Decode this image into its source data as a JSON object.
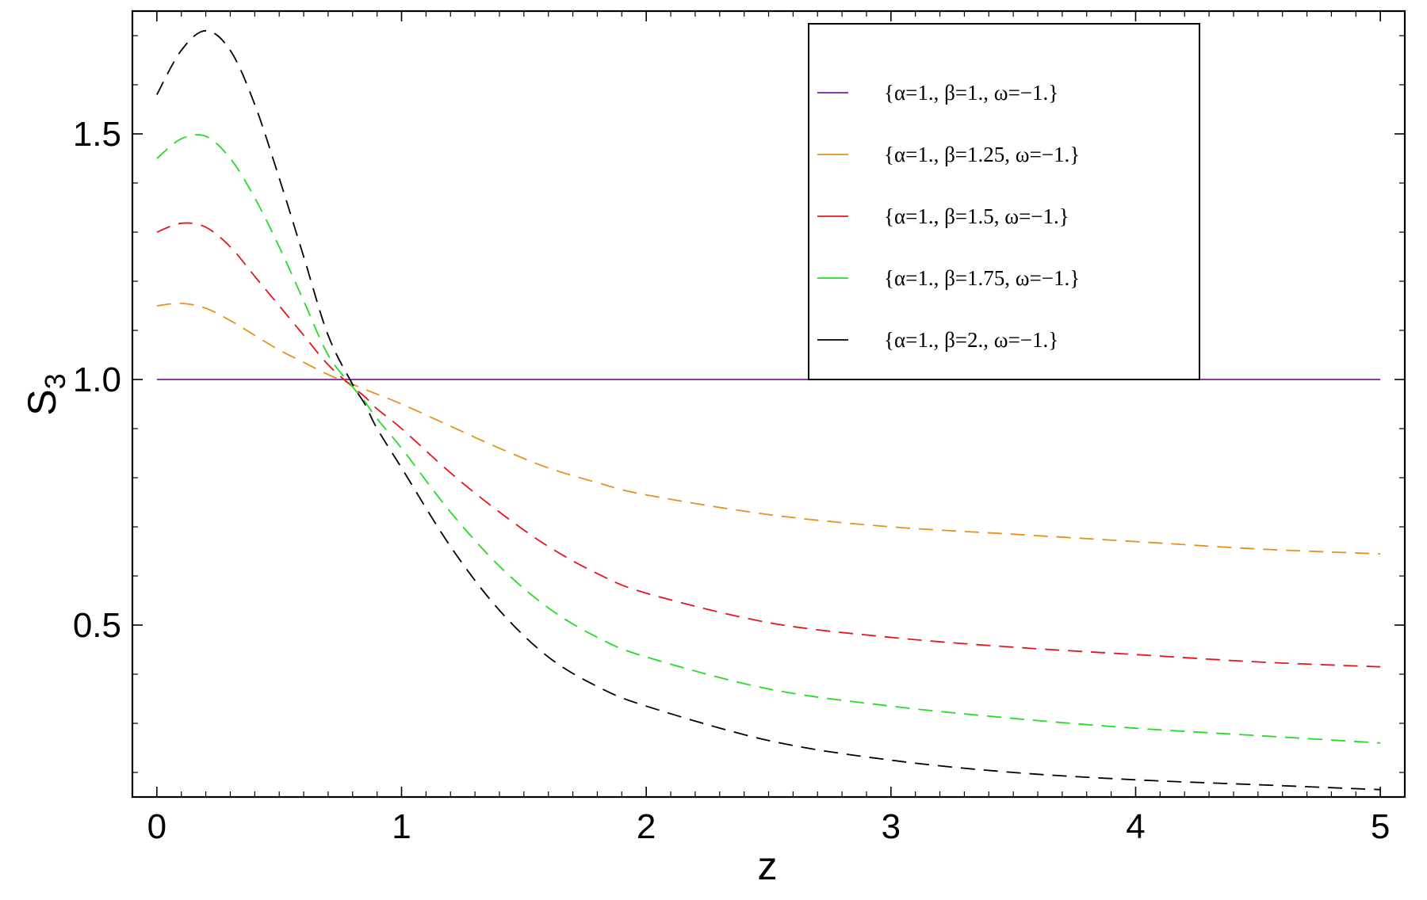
{
  "chart_data": {
    "type": "line",
    "xlabel": "z",
    "ylabel": "S",
    "ylabel_subscript": "3",
    "xlim": [
      -0.1,
      5.1
    ],
    "ylim": [
      0.15,
      1.75
    ],
    "xticks": [
      0,
      1,
      2,
      3,
      4,
      5
    ],
    "xtick_labels": [
      "0",
      "1",
      "2",
      "3",
      "4",
      "5"
    ],
    "yticks": [
      0.5,
      1.0,
      1.5
    ],
    "ytick_labels": [
      "0.5",
      "1.0",
      "1.5"
    ],
    "grid": false,
    "legend_position": "top-right",
    "x": [
      0,
      0.1,
      0.2,
      0.3,
      0.4,
      0.5,
      0.6,
      0.7,
      0.8,
      0.85,
      0.9,
      1.0,
      1.2,
      1.4,
      1.6,
      1.8,
      2.0,
      2.5,
      3.0,
      3.5,
      4.0,
      4.5,
      5.0
    ],
    "series": [
      {
        "name": "{α=1., β=1., ω=−1.}",
        "color": "#7b1fa2",
        "dash": "solid",
        "values": [
          1.0,
          1.0,
          1.0,
          1.0,
          1.0,
          1.0,
          1.0,
          1.0,
          1.0,
          1.0,
          1.0,
          1.0,
          1.0,
          1.0,
          1.0,
          1.0,
          1.0,
          1.0,
          1.0,
          1.0,
          1.0,
          1.0,
          1.0
        ]
      },
      {
        "name": "{α=1., β=1.25, ω=−1.}",
        "color": "#e8901c",
        "dash": "dashed",
        "values": [
          1.15,
          1.155,
          1.145,
          1.12,
          1.09,
          1.06,
          1.035,
          1.01,
          0.99,
          0.98,
          0.97,
          0.95,
          0.905,
          0.86,
          0.82,
          0.79,
          0.765,
          0.725,
          0.7,
          0.685,
          0.67,
          0.655,
          0.645
        ]
      },
      {
        "name": "{α=1., β=1.5, ω=−1.}",
        "color": "#e8141c",
        "dash": "dashed",
        "values": [
          1.3,
          1.318,
          1.31,
          1.27,
          1.21,
          1.15,
          1.09,
          1.03,
          0.985,
          0.965,
          0.94,
          0.9,
          0.81,
          0.73,
          0.66,
          0.605,
          0.565,
          0.505,
          0.475,
          0.455,
          0.44,
          0.425,
          0.415
        ]
      },
      {
        "name": "{α=1., β=1.75, ω=−1.}",
        "color": "#22dd22",
        "dash": "dashed",
        "values": [
          1.45,
          1.49,
          1.495,
          1.45,
          1.37,
          1.27,
          1.16,
          1.05,
          0.985,
          0.955,
          0.92,
          0.86,
          0.73,
          0.62,
          0.535,
          0.475,
          0.435,
          0.37,
          0.335,
          0.31,
          0.29,
          0.275,
          0.26
        ]
      },
      {
        "name": "{α=1., β=2., ω=−1.}",
        "color": "#000000",
        "dash": "dashed",
        "values": [
          1.58,
          1.67,
          1.71,
          1.67,
          1.56,
          1.41,
          1.25,
          1.09,
          0.99,
          0.95,
          0.9,
          0.82,
          0.66,
          0.53,
          0.435,
          0.375,
          0.335,
          0.265,
          0.225,
          0.2,
          0.185,
          0.175,
          0.165
        ]
      }
    ]
  }
}
